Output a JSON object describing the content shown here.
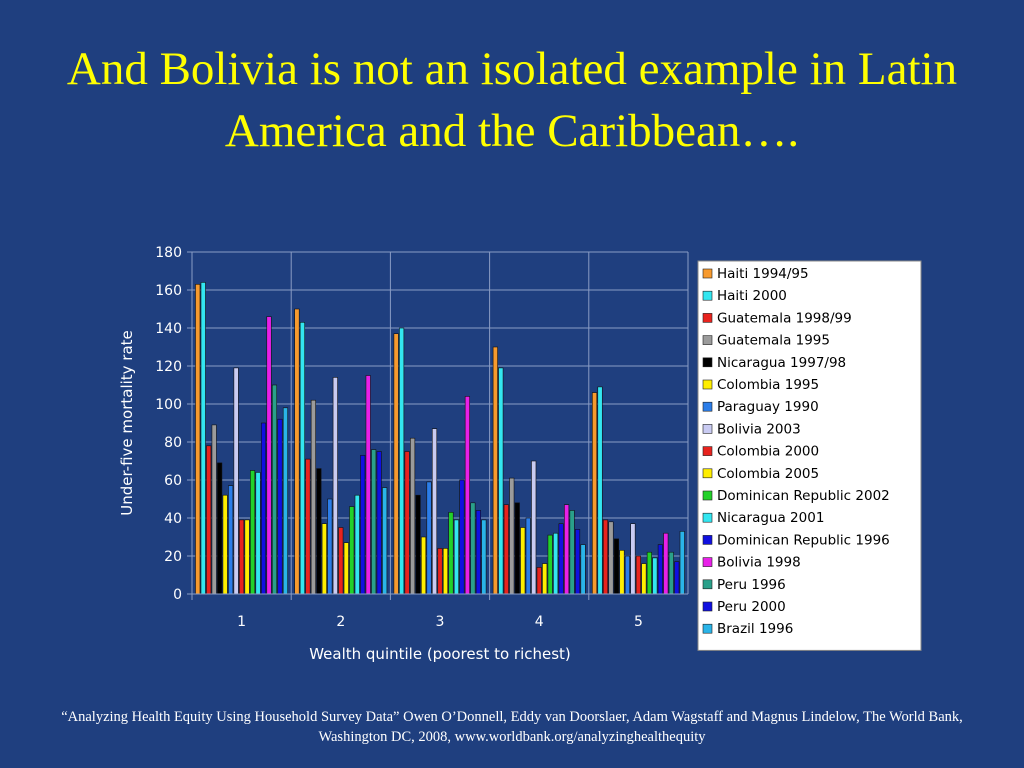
{
  "slide": {
    "title": "And Bolivia is not an isolated example in Latin America and the Caribbean….",
    "footnote": "“Analyzing Health Equity Using Household Survey Data” Owen O’Donnell, Eddy van Doorslaer, Adam Wagstaff and Magnus Lindelow, The World Bank, Washington DC, 2008, www.worldbank.org/analyzinghealthequity"
  },
  "colors": {
    "background": "#1f3f7f",
    "title": "#ffff00",
    "text": "#ffffff",
    "grid": "#8a9cc4",
    "legend_bg": "#ffffff"
  },
  "chart_data": {
    "type": "bar",
    "title": "",
    "xlabel": "Wealth quintile (poorest to richest)",
    "ylabel": "Under-five mortality rate",
    "ylim": [
      0,
      180
    ],
    "yticks": [
      0,
      20,
      40,
      60,
      80,
      100,
      120,
      140,
      160,
      180
    ],
    "categories": [
      "1",
      "2",
      "3",
      "4",
      "5"
    ],
    "grid": true,
    "legend_position": "right",
    "series": [
      {
        "name": "Haiti 1994/95",
        "color": "#f79a2e",
        "values": [
          163,
          150,
          137,
          130,
          106
        ]
      },
      {
        "name": "Haiti 2000",
        "color": "#33e6f0",
        "values": [
          164,
          143,
          140,
          119,
          109
        ]
      },
      {
        "name": "Guatemala 1998/99",
        "color": "#e8231e",
        "values": [
          78,
          71,
          75,
          47,
          39
        ]
      },
      {
        "name": "Guatemala 1995",
        "color": "#9b9b9b",
        "values": [
          89,
          102,
          82,
          61,
          38
        ]
      },
      {
        "name": "Nicaragua 1997/98",
        "color": "#000000",
        "values": [
          69,
          66,
          52,
          48,
          29
        ]
      },
      {
        "name": "Colombia 1995",
        "color": "#ffee00",
        "values": [
          52,
          37,
          30,
          35,
          23
        ]
      },
      {
        "name": "Paraguay 1990",
        "color": "#2b7de9",
        "values": [
          57,
          50,
          59,
          40,
          20
        ]
      },
      {
        "name": "Bolivia 2003",
        "color": "#c9cbf2",
        "values": [
          119,
          114,
          87,
          70,
          37
        ]
      },
      {
        "name": "Colombia 2000",
        "color": "#e8231e",
        "values": [
          39,
          35,
          24,
          14,
          20
        ]
      },
      {
        "name": "Colombia 2005",
        "color": "#ffee00",
        "values": [
          39,
          27,
          24,
          16,
          16
        ]
      },
      {
        "name": "Dominican Republic 2002",
        "color": "#22d12a",
        "values": [
          65,
          46,
          43,
          31,
          22
        ]
      },
      {
        "name": "Nicaragua 2001",
        "color": "#33e6f0",
        "values": [
          64,
          52,
          39,
          32,
          19
        ]
      },
      {
        "name": "Dominican Republic 1996",
        "color": "#1010e0",
        "values": [
          90,
          73,
          60,
          37,
          26
        ]
      },
      {
        "name": "Bolivia 1998",
        "color": "#e820e8",
        "values": [
          146,
          115,
          104,
          47,
          32
        ]
      },
      {
        "name": "Peru 1996",
        "color": "#2aa08a",
        "values": [
          110,
          76,
          48,
          44,
          22
        ]
      },
      {
        "name": "Peru 2000",
        "color": "#1010e0",
        "values": [
          92,
          75,
          44,
          34,
          17
        ]
      },
      {
        "name": "Brazil 1996",
        "color": "#2ab4e8",
        "values": [
          98,
          56,
          39,
          26,
          33
        ]
      }
    ]
  }
}
